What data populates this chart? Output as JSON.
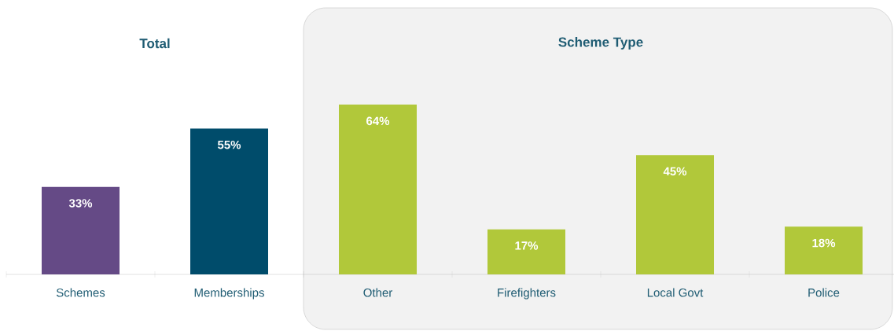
{
  "chart_data": [
    {
      "type": "bar",
      "title": "Total",
      "categories": [
        "Schemes",
        "Memberships"
      ],
      "values": [
        33,
        55
      ],
      "colors": [
        "#654a86",
        "#004c6b"
      ],
      "value_labels": [
        "33%",
        "55%"
      ],
      "tick_labels": "x"
    },
    {
      "type": "bar",
      "title": "Scheme Type",
      "categories": [
        "Other",
        "Firefighters",
        "Local Govt",
        "Police"
      ],
      "values": [
        64,
        17,
        45,
        18
      ],
      "colors": [
        "#b1c83a",
        "#b1c83a",
        "#b1c83a",
        "#b1c83a"
      ],
      "value_labels": [
        "64%",
        "17%",
        "45%",
        "18%"
      ],
      "tick_labels": "x"
    }
  ]
}
